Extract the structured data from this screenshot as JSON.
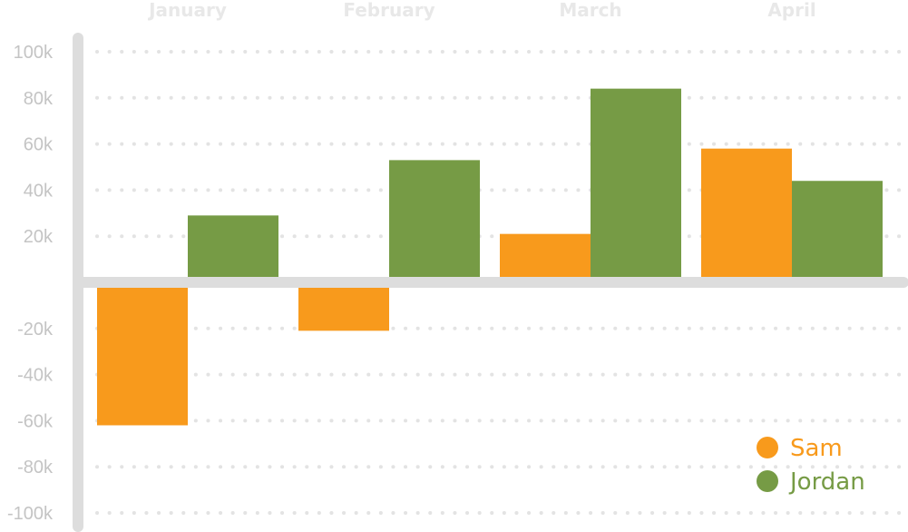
{
  "chart_data": {
    "type": "bar",
    "categories": [
      "January",
      "February",
      "March",
      "April"
    ],
    "series": [
      {
        "name": "Sam",
        "values": [
          -62000,
          -21000,
          21000,
          58000
        ],
        "color": "#f89a1c"
      },
      {
        "name": "Jordan",
        "values": [
          29000,
          53000,
          84000,
          44000
        ],
        "color": "#769b45"
      }
    ],
    "ylim": [
      -100000,
      100000
    ],
    "yticks": [
      "100k",
      "80k",
      "60k",
      "40k",
      "20k",
      "-20k",
      "-40k",
      "-60k",
      "-80k",
      "-100k"
    ],
    "ytick_values": [
      100000,
      80000,
      60000,
      40000,
      20000,
      -20000,
      -40000,
      -60000,
      -80000,
      -100000
    ],
    "grid": true,
    "legend_position": "bottom-right",
    "title": "",
    "xlabel": "",
    "ylabel": ""
  },
  "colors": {
    "axis": "#dddddd",
    "grid": "#e3e3e3",
    "month_label": "#e8e8e8",
    "tick_label": "#c4c4c4"
  }
}
